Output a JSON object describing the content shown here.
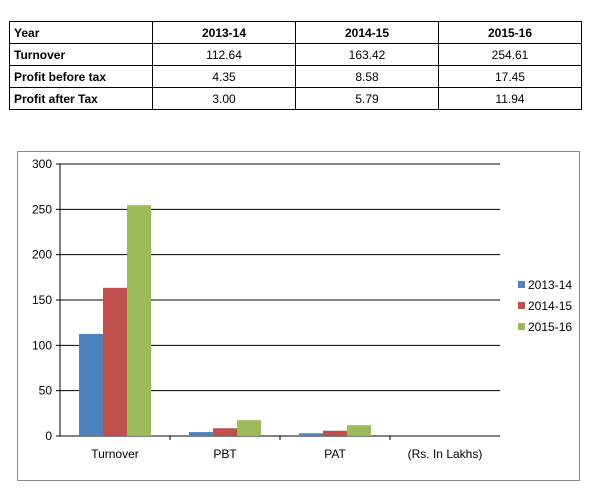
{
  "table": {
    "headers": [
      "Year",
      "2013-14",
      "2014-15",
      "2015-16"
    ],
    "rows": [
      {
        "label": "Turnover",
        "values": [
          "112.64",
          "163.42",
          "254.61"
        ]
      },
      {
        "label": "Profit before tax",
        "values": [
          "4.35",
          "8.58",
          "17.45"
        ]
      },
      {
        "label": "Profit after Tax",
        "values": [
          "3.00",
          "5.79",
          "11.94"
        ]
      }
    ]
  },
  "chart_data": {
    "type": "bar",
    "categories": [
      "Turnover",
      "PBT",
      "PAT",
      "(Rs. In Lakhs)"
    ],
    "series": [
      {
        "name": "2013-14",
        "color": "#4F81BD",
        "values": [
          112.64,
          4.35,
          3.0,
          null
        ]
      },
      {
        "name": "2014-15",
        "color": "#C0504D",
        "values": [
          163.42,
          8.58,
          5.79,
          null
        ]
      },
      {
        "name": "2015-16",
        "color": "#9BBB59",
        "values": [
          254.61,
          17.45,
          11.94,
          null
        ]
      }
    ],
    "ylim": [
      0,
      300
    ],
    "yticks": [
      0,
      50,
      100,
      150,
      200,
      250,
      300
    ],
    "grid": true,
    "legend_position": "right"
  }
}
